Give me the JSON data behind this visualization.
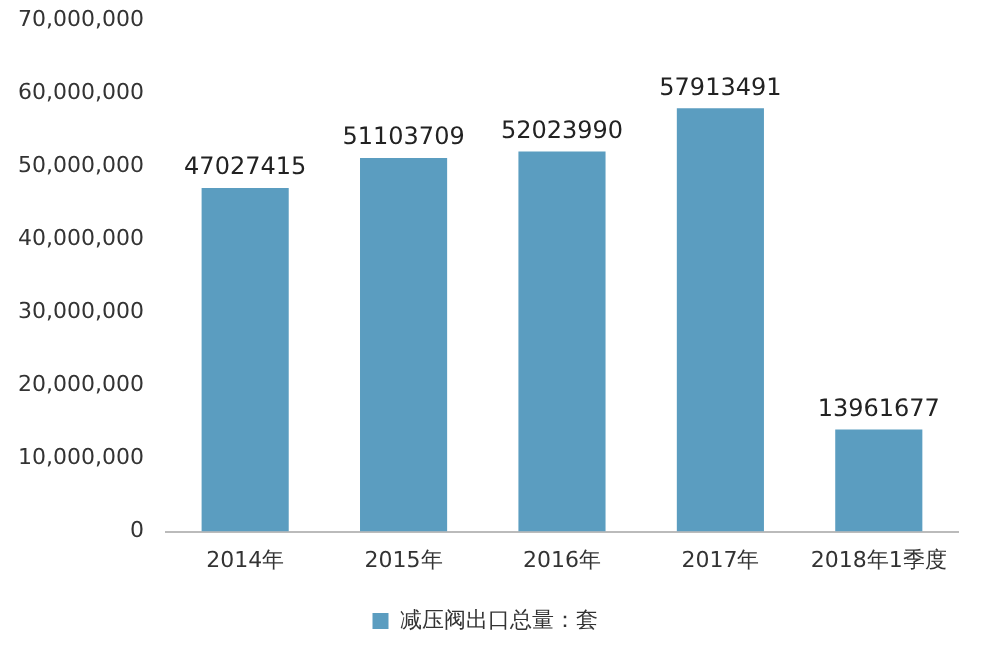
{
  "chart_data": {
    "type": "bar",
    "categories": [
      "2014年",
      "2015年",
      "2016年",
      "2017年",
      "2018年1季度"
    ],
    "series": [
      {
        "name": "减压阀出口总量：套",
        "color": "#5b9dc0",
        "values": [
          47027415,
          51103709,
          52023990,
          57913491,
          13961677
        ]
      }
    ],
    "ylim": [
      0,
      70000000
    ],
    "yticks": [
      0,
      {
        "value": 10000000,
        "label": "10,000,000"
      },
      {
        "value": 20000000,
        "label": "20,000,000"
      },
      {
        "value": 30000000,
        "label": "30,000,000"
      },
      {
        "value": 40000000,
        "label": "40,000,000"
      },
      {
        "value": 50000000,
        "label": "50,000,000"
      },
      {
        "value": 60000000,
        "label": "60,000,000"
      },
      {
        "value": 70000000,
        "label": "70,000,000"
      }
    ],
    "grid": false,
    "legend": "bottom",
    "data_labels": true
  }
}
